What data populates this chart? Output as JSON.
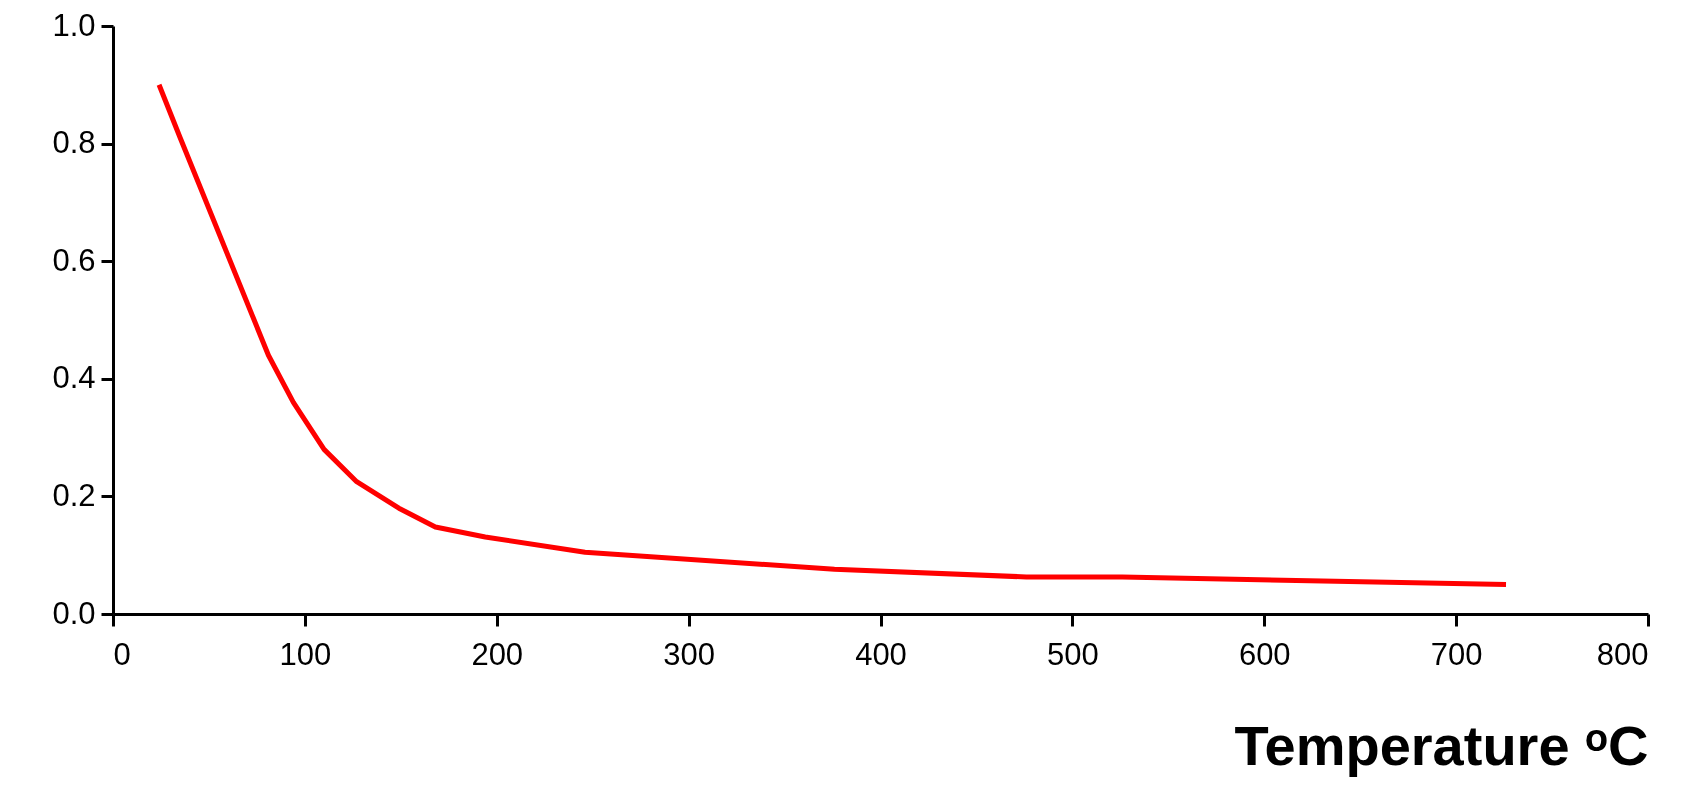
{
  "chart_data": {
    "type": "line",
    "xlabel": "Temperature ᵒC",
    "x": [
      24,
      35,
      81,
      94,
      110,
      127,
      149,
      168,
      194,
      246,
      376,
      476,
      526,
      726
    ],
    "series": [
      {
        "color": "#ff0000",
        "values": [
          0.9,
          0.81,
          0.44,
          0.36,
          0.28,
          0.225,
          0.18,
          0.148,
          0.131,
          0.105,
          0.076,
          0.063,
          0.063,
          0.05
        ]
      }
    ],
    "xlim": [
      0,
      800
    ],
    "xticks": [
      0,
      100,
      200,
      300,
      400,
      500,
      600,
      700,
      800
    ],
    "ylim": [
      0,
      1
    ],
    "yticks": [
      {
        "value": 0,
        "label": "0.0"
      },
      {
        "value": 0.2,
        "label": "0.2"
      },
      {
        "value": 0.4,
        "label": "0.4"
      },
      {
        "value": 0.6,
        "label": "0.6"
      },
      {
        "value": 0.8,
        "label": "0.8"
      },
      {
        "value": 1,
        "label": "1.0"
      }
    ],
    "grid": false,
    "marker": "none",
    "line_style": "solid"
  }
}
